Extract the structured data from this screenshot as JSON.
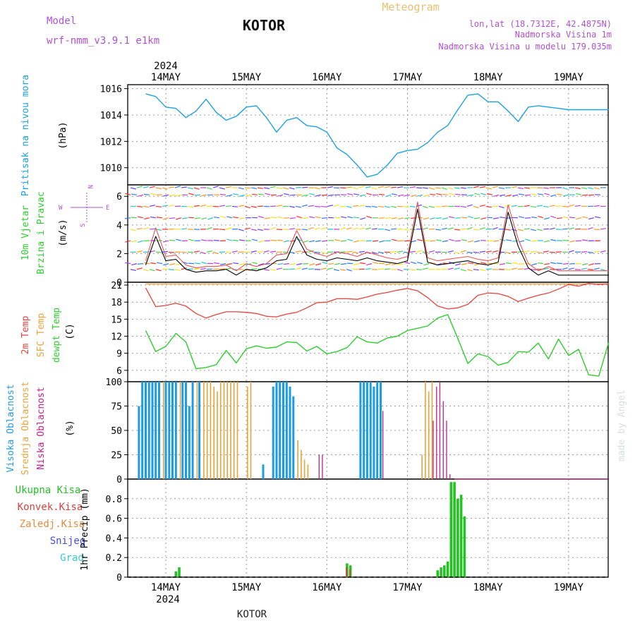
{
  "header": {
    "model_label": "Model",
    "model_name": "wrf-nmm_v3.9.1 e1km",
    "station": "KOTOR",
    "product": "Meteogram",
    "coords": "lon,lat (18.7312E, 42.4875N)",
    "altitude": "Nadmorska Visina 1m",
    "model_altitude": "Nadmorska Visina u modelu 179.035m",
    "year_top": "2024",
    "year_bottom": "2024",
    "footer_station": "KOTOR",
    "watermark": "made by Angel"
  },
  "colors": {
    "pressure": "#1ba1e2",
    "temp_2m": "#e8423c",
    "temp_sfc": "#e8a33a",
    "dewpoint": "#2ecc2e",
    "cloud_high": "#1e9be6",
    "cloud_mid": "#e8a33a",
    "cloud_low": "#c21f8c",
    "precip_total": "#22c222",
    "precip_conv": "#d94040",
    "precip_frozen": "#e88a3a",
    "snow": "#4a4ae6",
    "hail": "#3ac8c8",
    "header_purple": "#b050d0",
    "header_orange": "#e8c070",
    "wind_speed": "#000000",
    "wind_gust": "#e85050"
  },
  "chart_data": [
    {
      "type": "line",
      "panel": "pressure",
      "ylabel": "Pritisak na nivou mora",
      "unit": "(hPa)",
      "ylim": [
        1008.7,
        1016.3
      ],
      "yticks": [
        1010,
        1012,
        1014,
        1016
      ],
      "grid": true,
      "x": [
        "13MAY 18",
        "13MAY 21",
        "14MAY 00",
        "14MAY 03",
        "14MAY 06",
        "14MAY 09",
        "14MAY 12",
        "14MAY 15",
        "14MAY 18",
        "14MAY 21",
        "15MAY 00",
        "15MAY 03",
        "15MAY 06",
        "15MAY 09",
        "15MAY 12",
        "15MAY 15",
        "15MAY 18",
        "15MAY 21",
        "16MAY 00",
        "16MAY 03",
        "16MAY 06",
        "16MAY 09",
        "16MAY 12",
        "16MAY 15",
        "16MAY 18",
        "16MAY 21",
        "17MAY 00",
        "17MAY 03",
        "17MAY 06",
        "17MAY 09",
        "17MAY 12",
        "17MAY 15",
        "17MAY 18",
        "17MAY 21",
        "18MAY 00",
        "18MAY 03",
        "18MAY 06",
        "18MAY 09",
        "18MAY 12",
        "18MAY 15",
        "18MAY 18",
        "18MAY 21",
        "19MAY 00",
        "19MAY 03",
        "19MAY 06",
        "19MAY 09",
        "19MAY 12"
      ],
      "series": [
        {
          "values": [
            1015.6,
            1015.4,
            1014.6,
            1014.5,
            1013.8,
            1014.3,
            1015.2,
            1014.2,
            1013.6,
            1013.9,
            1014.6,
            1014.7,
            1013.8,
            1012.7,
            1013.6,
            1013.8,
            1013.2,
            1013.1,
            1012.7,
            1011.5,
            1011.0,
            1010.2,
            1009.3,
            1009.5,
            1010.2,
            1011.1,
            1011.3,
            1011.4,
            1011.9,
            1012.7,
            1013.2,
            1014.4,
            1015.5,
            1015.6,
            1015.0,
            1015.0,
            1014.3,
            1013.5,
            1014.6,
            1014.7,
            1014.6,
            1014.5,
            1014.4,
            1014.4,
            1014.4,
            1014.4,
            1014.4
          ]
        }
      ]
    },
    {
      "type": "line",
      "panel": "wind",
      "ylabel": "10m Vjetar Brzina i Pravac",
      "unit": "(m/s)",
      "ylim": [
        0,
        6.8
      ],
      "yticks": [
        0,
        2,
        4,
        6
      ],
      "grid": true,
      "compass": {
        "north": "N",
        "south": "S",
        "east": "E",
        "west": "W"
      },
      "x": [
        "13MAY 18",
        "13MAY 21",
        "14MAY 00",
        "14MAY 03",
        "14MAY 06",
        "14MAY 09",
        "14MAY 12",
        "14MAY 15",
        "14MAY 18",
        "14MAY 21",
        "15MAY 00",
        "15MAY 03",
        "15MAY 06",
        "15MAY 09",
        "15MAY 12",
        "15MAY 15",
        "15MAY 18",
        "15MAY 21",
        "16MAY 00",
        "16MAY 03",
        "16MAY 06",
        "16MAY 09",
        "16MAY 12",
        "16MAY 15",
        "16MAY 18",
        "16MAY 21",
        "17MAY 00",
        "17MAY 03",
        "17MAY 06",
        "17MAY 09",
        "17MAY 12",
        "17MAY 15",
        "17MAY 18",
        "17MAY 21",
        "18MAY 00",
        "18MAY 03",
        "18MAY 06",
        "18MAY 09",
        "18MAY 12",
        "18MAY 15",
        "18MAY 18",
        "18MAY 21",
        "19MAY 00",
        "19MAY 03",
        "19MAY 06",
        "19MAY 09",
        "19MAY 12"
      ],
      "series": [
        {
          "values": [
            1.2,
            3.2,
            1.5,
            1.6,
            0.9,
            0.7,
            0.8,
            0.8,
            0.9,
            0.5,
            0.9,
            0.8,
            1.0,
            1.5,
            1.6,
            3.2,
            1.9,
            1.6,
            1.5,
            1.7,
            1.6,
            1.5,
            1.7,
            1.5,
            1.4,
            1.3,
            1.5,
            5.1,
            1.4,
            1.2,
            1.3,
            1.4,
            1.5,
            1.3,
            1.2,
            1.4,
            4.9,
            2.5,
            1.0,
            0.5,
            0.8,
            0.5,
            0.5,
            0.5,
            0.5,
            0.5,
            0.5
          ]
        },
        {
          "values": [
            1.5,
            3.8,
            1.8,
            1.9,
            1.2,
            1.0,
            1.1,
            1.1,
            1.2,
            0.8,
            1.3,
            1.1,
            1.3,
            1.9,
            2.0,
            3.6,
            2.3,
            2.0,
            1.8,
            2.1,
            2.0,
            1.8,
            2.1,
            1.9,
            1.7,
            1.6,
            1.8,
            5.6,
            1.7,
            1.5,
            1.6,
            1.7,
            1.8,
            1.6,
            1.5,
            1.7,
            5.4,
            3.0,
            1.3,
            0.8,
            1.1,
            0.8,
            0.8,
            0.8,
            0.8,
            0.8,
            0.8
          ]
        }
      ]
    },
    {
      "type": "line",
      "panel": "temperature",
      "ylabel": "2m Temp, SFC Temp, dewpt Temp",
      "unit": "(C)",
      "ylim": [
        4,
        21.5
      ],
      "yticks": [
        6,
        9,
        12,
        15,
        18,
        21
      ],
      "grid": true,
      "x": [
        "13MAY 18",
        "13MAY 21",
        "14MAY 00",
        "14MAY 03",
        "14MAY 06",
        "14MAY 09",
        "14MAY 12",
        "14MAY 15",
        "14MAY 18",
        "14MAY 21",
        "15MAY 00",
        "15MAY 03",
        "15MAY 06",
        "15MAY 09",
        "15MAY 12",
        "15MAY 15",
        "15MAY 18",
        "15MAY 21",
        "16MAY 00",
        "16MAY 03",
        "16MAY 06",
        "16MAY 09",
        "16MAY 12",
        "16MAY 15",
        "16MAY 18",
        "16MAY 21",
        "17MAY 00",
        "17MAY 03",
        "17MAY 06",
        "17MAY 09",
        "17MAY 12",
        "17MAY 15",
        "17MAY 18",
        "17MAY 21",
        "18MAY 00",
        "18MAY 03",
        "18MAY 06",
        "18MAY 09",
        "18MAY 12",
        "18MAY 15",
        "18MAY 18",
        "18MAY 21",
        "19MAY 00",
        "19MAY 03",
        "19MAY 06",
        "19MAY 09",
        "19MAY 12"
      ],
      "series": [
        {
          "values": [
            20.5,
            17.2,
            17.4,
            17.8,
            17.3,
            16.0,
            15.2,
            15.8,
            16.3,
            16.3,
            16.2,
            16.0,
            15.5,
            15.4,
            15.9,
            16.2,
            17.0,
            17.9,
            18.0,
            18.6,
            18.6,
            18.5,
            18.9,
            19.4,
            19.7,
            20.1,
            20.4,
            20.0,
            18.8,
            17.3,
            16.8,
            17.0,
            17.6,
            19.2,
            19.6,
            19.5,
            19.0,
            18.1,
            18.7,
            19.2,
            19.6,
            20.3,
            21.1,
            20.8,
            21.3,
            21.1,
            21.2
          ]
        },
        {
          "values": [
            21.2,
            21.2,
            21.2,
            21.2,
            21.2,
            21.2,
            21.2,
            21.2,
            21.2,
            21.2,
            21.2,
            21.2,
            21.2,
            21.2,
            21.2,
            21.2,
            21.2,
            21.2,
            21.2,
            21.2,
            21.2,
            21.2,
            21.2,
            21.2,
            21.2,
            21.2,
            21.2,
            21.2,
            21.2,
            21.2,
            21.2,
            21.2,
            21.2,
            21.2,
            21.2,
            21.2,
            21.2,
            21.2,
            21.2,
            21.2,
            21.2,
            21.2,
            21.2,
            21.2,
            21.2,
            21.2,
            21.2
          ]
        },
        {
          "values": [
            13.0,
            9.3,
            10.2,
            12.5,
            11.0,
            6.3,
            6.5,
            7.0,
            9.5,
            7.3,
            9.8,
            10.3,
            9.9,
            10.1,
            11.0,
            10.9,
            9.4,
            10.2,
            8.9,
            9.3,
            10.0,
            11.9,
            11.0,
            10.8,
            11.7,
            12.0,
            13.0,
            13.4,
            13.8,
            15.2,
            15.8,
            11.6,
            7.2,
            8.9,
            8.4,
            6.9,
            7.4,
            9.3,
            9.2,
            10.8,
            8.0,
            11.5,
            8.6,
            9.7,
            5.2,
            5.0,
            11.0
          ]
        }
      ]
    },
    {
      "type": "bar",
      "panel": "cloud",
      "ylabel": "Visoka Oblacnost, Srednja Oblacnost, Niska Oblacnost",
      "unit": "(%)",
      "ylim": [
        0,
        100
      ],
      "yticks": [
        0,
        25,
        50,
        75,
        100
      ],
      "grid": true,
      "x": [
        "13MAY 16",
        "13MAY 17",
        "13MAY 18",
        "13MAY 19",
        "13MAY 20",
        "13MAY 21",
        "13MAY 22",
        "13MAY 23",
        "14MAY 00",
        "14MAY 01",
        "14MAY 02",
        "14MAY 03",
        "14MAY 04",
        "14MAY 05",
        "14MAY 06",
        "14MAY 07",
        "14MAY 08",
        "14MAY 09",
        "14MAY 10",
        "14MAY 11",
        "14MAY 12",
        "14MAY 13",
        "14MAY 14",
        "14MAY 15",
        "14MAY 16",
        "14MAY 17",
        "14MAY 18",
        "14MAY 19",
        "14MAY 20",
        "14MAY 21",
        "15MAY 00",
        "15MAY 01",
        "15MAY 02",
        "15MAY 03",
        "15MAY 04",
        "15MAY 05",
        "15MAY 06",
        "15MAY 07",
        "15MAY 08",
        "15MAY 09",
        "15MAY 10",
        "15MAY 11",
        "15MAY 12",
        "15MAY 13",
        "15MAY 14",
        "15MAY 15",
        "15MAY 16",
        "15MAY 17",
        "15MAY 18",
        "15MAY 19",
        "15MAY 20",
        "15MAY 21",
        "15MAY 22",
        "15MAY 23",
        "16MAY 00",
        "16MAY 01",
        "16MAY 02",
        "16MAY 03",
        "16MAY 04",
        "16MAY 05",
        "16MAY 06",
        "16MAY 07",
        "16MAY 08",
        "16MAY 09",
        "16MAY 10",
        "16MAY 11",
        "16MAY 12",
        "16MAY 13",
        "16MAY 14",
        "16MAY 15",
        "16MAY 16",
        "16MAY 17",
        "16MAY 18",
        "16MAY 19",
        "16MAY 20",
        "16MAY 21",
        "16MAY 22",
        "16MAY 23",
        "17MAY 00",
        "17MAY 01",
        "17MAY 02",
        "17MAY 03",
        "17MAY 04",
        "17MAY 05",
        "17MAY 06",
        "17MAY 07",
        "17MAY 08",
        "17MAY 09",
        "17MAY 10",
        "17MAY 11",
        "17MAY 12",
        "17MAY 13"
      ],
      "series": [
        {
          "values": [
            75,
            100,
            100,
            100,
            100,
            100,
            100,
            0,
            100,
            100,
            100,
            100,
            0,
            100,
            100,
            75,
            100,
            0,
            100,
            0,
            0,
            0,
            0,
            0,
            0,
            0,
            0,
            0,
            0,
            0,
            0,
            0,
            0,
            0,
            0,
            15,
            0,
            0,
            95,
            100,
            100,
            100,
            100,
            95,
            85,
            0,
            0,
            0,
            0,
            0,
            0,
            0,
            0,
            0,
            0,
            0,
            0,
            0,
            0,
            0,
            0,
            0,
            0,
            0,
            100,
            100,
            100,
            100,
            95,
            100,
            100,
            0,
            0,
            0,
            0,
            0,
            0,
            0,
            0,
            0,
            0,
            0,
            0,
            0,
            0,
            0,
            0,
            0,
            0,
            0,
            0,
            0
          ]
        },
        {
          "values": [
            0,
            0,
            0,
            0,
            0,
            0,
            0,
            100,
            0,
            0,
            0,
            0,
            100,
            0,
            0,
            0,
            0,
            100,
            0,
            100,
            100,
            100,
            95,
            90,
            100,
            100,
            100,
            100,
            100,
            100,
            95,
            100,
            0,
            0,
            0,
            0,
            0,
            0,
            0,
            0,
            0,
            0,
            0,
            0,
            0,
            40,
            30,
            20,
            15,
            0,
            0,
            0,
            0,
            0,
            0,
            0,
            0,
            0,
            0,
            0,
            0,
            0,
            0,
            0,
            0,
            0,
            0,
            0,
            0,
            0,
            0,
            0,
            0,
            0,
            0,
            0,
            0,
            0,
            0,
            0,
            0,
            0,
            25,
            100,
            90,
            100,
            0,
            0,
            0,
            0,
            0,
            0
          ]
        },
        {
          "values": [
            0,
            0,
            0,
            0,
            0,
            0,
            0,
            0,
            0,
            0,
            0,
            0,
            0,
            0,
            0,
            0,
            0,
            0,
            0,
            0,
            0,
            0,
            0,
            0,
            0,
            0,
            0,
            0,
            0,
            0,
            0,
            0,
            0,
            0,
            0,
            0,
            0,
            0,
            0,
            0,
            0,
            0,
            0,
            0,
            0,
            0,
            0,
            0,
            0,
            0,
            0,
            0,
            25,
            25,
            0,
            0,
            0,
            0,
            0,
            0,
            0,
            0,
            0,
            0,
            0,
            0,
            0,
            0,
            0,
            0,
            0,
            70,
            0,
            0,
            0,
            0,
            0,
            0,
            0,
            0,
            0,
            0,
            0,
            0,
            0,
            0,
            60,
            95,
            100,
            80,
            60,
            5
          ]
        }
      ]
    },
    {
      "type": "bar",
      "panel": "precip",
      "ylabel": "1hr Precip (mm)",
      "legend": [
        "Ukupna Kisa",
        "Konvek.Kisa",
        "Zaledj.Kisa",
        "Snijeg",
        "Grad"
      ],
      "ylim": [
        0,
        1.0
      ],
      "yticks": [
        0,
        0.2,
        0.4,
        0.6,
        0.8
      ],
      "grid": true,
      "x_labels_top": [
        "14MAY",
        "15MAY",
        "16MAY",
        "17MAY",
        "18MAY",
        "19MAY"
      ],
      "x_labels_bottom": [
        "14MAY",
        "15MAY",
        "16MAY",
        "17MAY",
        "18MAY",
        "19MAY"
      ],
      "events": [
        {
          "x": "14MAY 03",
          "total": 0.06,
          "convective": 0.0
        },
        {
          "x": "14MAY 04",
          "total": 0.1,
          "convective": 0.0
        },
        {
          "x": "16MAY 06",
          "total": 0.14,
          "convective": 0.1
        },
        {
          "x": "16MAY 07",
          "total": 0.12,
          "convective": 0.08
        },
        {
          "x": "17MAY 09",
          "total": 0.07,
          "convective": 0.0
        },
        {
          "x": "17MAY 10",
          "total": 0.1,
          "convective": 0.0
        },
        {
          "x": "17MAY 11",
          "total": 0.12,
          "convective": 0.0
        },
        {
          "x": "17MAY 12",
          "total": 0.16,
          "convective": 0.0
        },
        {
          "x": "17MAY 13",
          "total": 0.97,
          "convective": 0.0
        },
        {
          "x": "17MAY 14",
          "total": 0.97,
          "convective": 0.0
        },
        {
          "x": "17MAY 15",
          "total": 0.8,
          "convective": 0.0
        },
        {
          "x": "17MAY 16",
          "total": 0.84,
          "convective": 0.0
        },
        {
          "x": "17MAY 17",
          "total": 0.62,
          "convective": 0.0
        }
      ]
    }
  ]
}
